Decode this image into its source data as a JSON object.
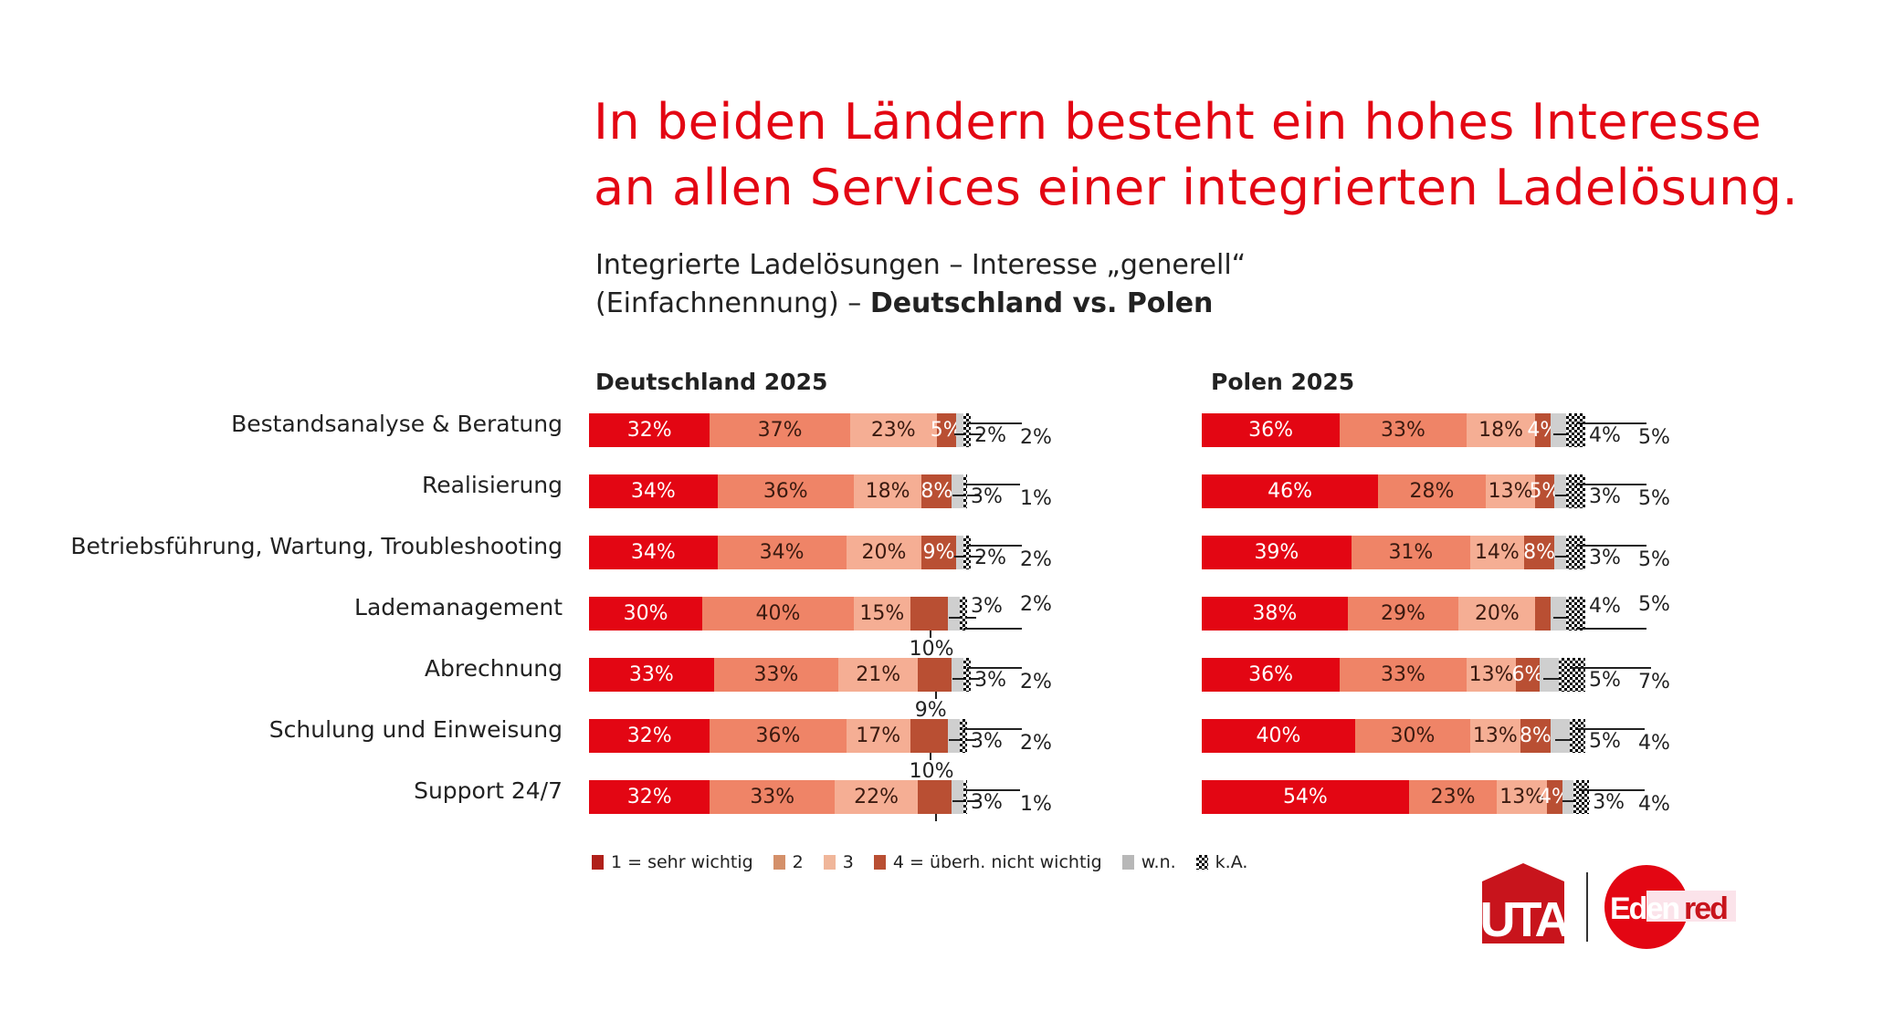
{
  "header": {
    "title_line1": "In beiden Ländern besteht ein hohes Interesse",
    "title_line2": "an allen Services einer integrierten Ladelösung.",
    "subtitle_line1": "Integrierte Ladelösungen – Interesse „generell“",
    "subtitle_line2_prefix": "(Einfachnennung) – ",
    "subtitle_line2_bold": "Deutschland vs. Polen"
  },
  "colors": {
    "accent": "#e30613",
    "1": "#e30613",
    "2": "#ef8467",
    "3": "#f5ae94",
    "4": "#b94f33",
    "wn": "#cfcfcf",
    "ka": "checkered"
  },
  "logos": {
    "uta": "UTA",
    "edenred": "Edenred"
  },
  "chart_data": [
    {
      "type": "bar",
      "orientation": "horizontal-stacked",
      "title": "Deutschland 2025",
      "categories": [
        "Bestandsanalyse & Beratung",
        "Realisierung",
        "Betriebsführung, Wartung, Troubleshooting",
        "Lademanagement",
        "Abrechnung",
        "Schulung und Einweisung",
        "Support 24/7"
      ],
      "legend": [
        "1 = sehr wichtig",
        "2",
        "3",
        "4 = überh. nicht wichtig",
        "w.n.",
        "k.A."
      ],
      "legend_placement": "bottom",
      "series": [
        {
          "name": "1 = sehr wichtig",
          "values": [
            32,
            34,
            34,
            30,
            33,
            32,
            32
          ],
          "labels": [
            "32%",
            "34%",
            "34%",
            "30%",
            "33%",
            "32%",
            "32%"
          ]
        },
        {
          "name": "2",
          "values": [
            37,
            36,
            34,
            40,
            33,
            36,
            33
          ],
          "labels": [
            "37%",
            "36%",
            "34%",
            "40%",
            "33%",
            "36%",
            "33%"
          ]
        },
        {
          "name": "3",
          "values": [
            23,
            18,
            20,
            15,
            21,
            17,
            22
          ],
          "labels": [
            "23%",
            "18%",
            "20%",
            "15%",
            "21%",
            "17%",
            "22%"
          ]
        },
        {
          "name": "4 = überh. nicht wichtig",
          "values": [
            5,
            8,
            9,
            10,
            9,
            10,
            9
          ],
          "labels": [
            "5%",
            "8%",
            "9%",
            "10%",
            "9%",
            "10%",
            ""
          ],
          "label_below": [
            false,
            false,
            false,
            true,
            true,
            true,
            false
          ]
        },
        {
          "name": "w.n.",
          "values": [
            2,
            3,
            2,
            3,
            3,
            3,
            3
          ],
          "labels": [
            "2%",
            "3%",
            "2%",
            "3%",
            "3%",
            "3%",
            "3%"
          ]
        },
        {
          "name": "k.A.",
          "values": [
            2,
            1,
            2,
            2,
            2,
            2,
            1
          ],
          "labels": [
            "2%",
            "1%",
            "2%",
            "2%",
            "2%",
            "2%",
            "1%"
          ]
        }
      ]
    },
    {
      "type": "bar",
      "orientation": "horizontal-stacked",
      "title": "Polen 2025",
      "categories": [
        "Bestandsanalyse & Beratung",
        "Realisierung",
        "Betriebsführung, Wartung, Troubleshooting",
        "Lademanagement",
        "Abrechnung",
        "Schulung und Einweisung",
        "Support 24/7"
      ],
      "series": [
        {
          "name": "1 = sehr wichtig",
          "values": [
            36,
            46,
            39,
            38,
            36,
            40,
            54
          ],
          "labels": [
            "36%",
            "46%",
            "39%",
            "38%",
            "36%",
            "40%",
            "54%"
          ]
        },
        {
          "name": "2",
          "values": [
            33,
            28,
            31,
            29,
            33,
            30,
            23
          ],
          "labels": [
            "33%",
            "28%",
            "31%",
            "29%",
            "33%",
            "30%",
            "23%"
          ]
        },
        {
          "name": "3",
          "values": [
            18,
            13,
            14,
            20,
            13,
            13,
            13
          ],
          "labels": [
            "18%",
            "13%",
            "14%",
            "20%",
            "13%",
            "13%",
            "13%"
          ]
        },
        {
          "name": "4 = überh. nicht wichtig",
          "values": [
            4,
            5,
            8,
            4,
            6,
            8,
            4
          ],
          "labels": [
            "4%",
            "5%",
            "8%",
            "",
            "6%",
            "8%",
            "4%"
          ],
          "label_below": [
            false,
            false,
            false,
            false,
            false,
            false,
            false
          ]
        },
        {
          "name": "w.n.",
          "values": [
            4,
            3,
            3,
            4,
            5,
            5,
            3
          ],
          "labels": [
            "4%",
            "3%",
            "3%",
            "4%",
            "5%",
            "5%",
            "3%"
          ]
        },
        {
          "name": "k.A.",
          "values": [
            5,
            5,
            5,
            5,
            7,
            4,
            4
          ],
          "labels": [
            "5%",
            "5%",
            "5%",
            "5%",
            "7%",
            "4%",
            "4%"
          ]
        }
      ]
    }
  ]
}
